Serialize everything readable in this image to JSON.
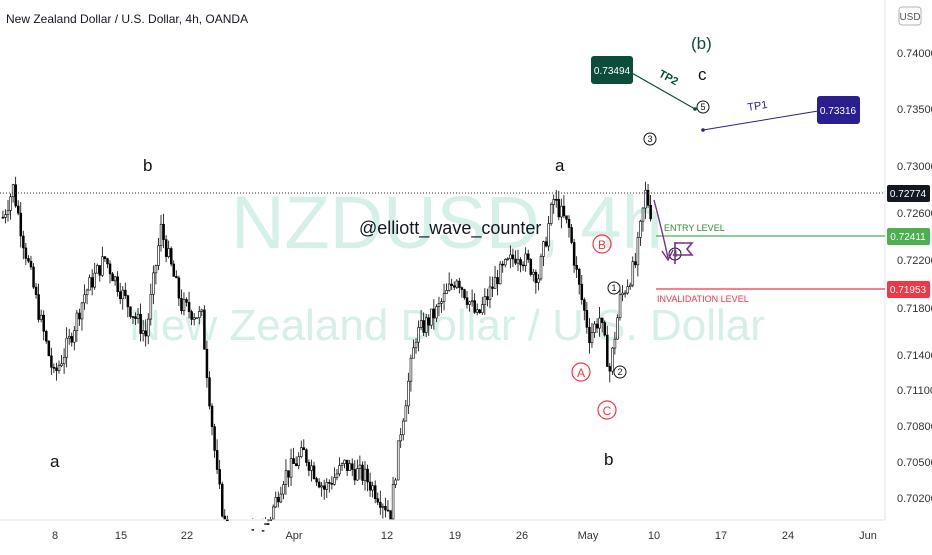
{
  "header": {
    "title": "New Zealand Dollar / U.S. Dollar, 4h, OANDA",
    "currency_badge": "USD",
    "watermark_symbol": "NZDUSD, 4h",
    "watermark_name": "New Zealand Dollar / U.S. Dollar",
    "author_tag": "@elliott_wave_counter"
  },
  "colors": {
    "up_candle": "#ffffff",
    "down_candle": "#000000",
    "entry": "#4caf50",
    "invalidation": "#f23645",
    "tp2_box": "#0b4d3a",
    "tp1_box": "#2a1f8f",
    "wave_red": "#f23645",
    "arrow": "#7b2d8e",
    "watermark": "#d5efe9"
  },
  "chart_data": {
    "type": "candlestick",
    "symbol": "NZDUSD",
    "timeframe": "4h",
    "price_scale": {
      "ylim": [
        0.7,
        0.7425
      ],
      "ticks": [
        "0.74000",
        "0.73500",
        "0.73000",
        "0.72600",
        "0.72200",
        "0.71800",
        "0.71400",
        "0.71100",
        "0.70800",
        "0.70500",
        "0.70200"
      ]
    },
    "time_axis": {
      "ticks": [
        "8",
        "15",
        "22",
        "Apr",
        "12",
        "19",
        "26",
        "May",
        "10",
        "17",
        "24",
        "Jun"
      ]
    },
    "approx_close_path": [
      [
        0,
        0.726
      ],
      [
        4,
        0.7285
      ],
      [
        8,
        0.724
      ],
      [
        14,
        0.718
      ],
      [
        20,
        0.7125
      ],
      [
        26,
        0.7155
      ],
      [
        32,
        0.7195
      ],
      [
        40,
        0.7225
      ],
      [
        48,
        0.719
      ],
      [
        56,
        0.716
      ],
      [
        62,
        0.725
      ],
      [
        70,
        0.7185
      ],
      [
        78,
        0.7175
      ],
      [
        84,
        0.704
      ],
      [
        90,
        0.696
      ],
      [
        97,
        0.699
      ],
      [
        104,
        0.7
      ],
      [
        110,
        0.704
      ],
      [
        118,
        0.706
      ],
      [
        126,
        0.703
      ],
      [
        134,
        0.705
      ],
      [
        142,
        0.704
      ],
      [
        152,
        0.701
      ],
      [
        156,
        0.708
      ],
      [
        162,
        0.716
      ],
      [
        170,
        0.718
      ],
      [
        178,
        0.721
      ],
      [
        186,
        0.7175
      ],
      [
        194,
        0.721
      ],
      [
        202,
        0.723
      ],
      [
        210,
        0.721
      ],
      [
        216,
        0.7275
      ],
      [
        222,
        0.725
      ],
      [
        226,
        0.72
      ],
      [
        230,
        0.716
      ],
      [
        234,
        0.7175
      ],
      [
        238,
        0.713
      ],
      [
        242,
        0.719
      ],
      [
        248,
        0.722
      ],
      [
        252,
        0.728
      ],
      [
        254,
        0.7265
      ]
    ],
    "levels": [
      {
        "name": "last_price",
        "value": "0.72774"
      },
      {
        "name": "entry",
        "label": "ENTRY LEVEL",
        "value": "0.72411"
      },
      {
        "name": "invalidation",
        "label": "INVALIDATION LEVEL",
        "value": "0.71953"
      },
      {
        "name": "TP1",
        "label": "TP1",
        "value": "0.73316"
      },
      {
        "name": "TP2",
        "label": "TP2",
        "value": "0.73494"
      }
    ],
    "wave_labels": [
      {
        "text": "b"
      },
      {
        "text": "a"
      },
      {
        "text": "a"
      },
      {
        "text": "b"
      },
      {
        "text": "(b)"
      },
      {
        "text": "c"
      }
    ],
    "circled_red": [
      "A",
      "B",
      "C"
    ],
    "circled_black": [
      "1",
      "2",
      "3",
      "4",
      "5"
    ]
  }
}
